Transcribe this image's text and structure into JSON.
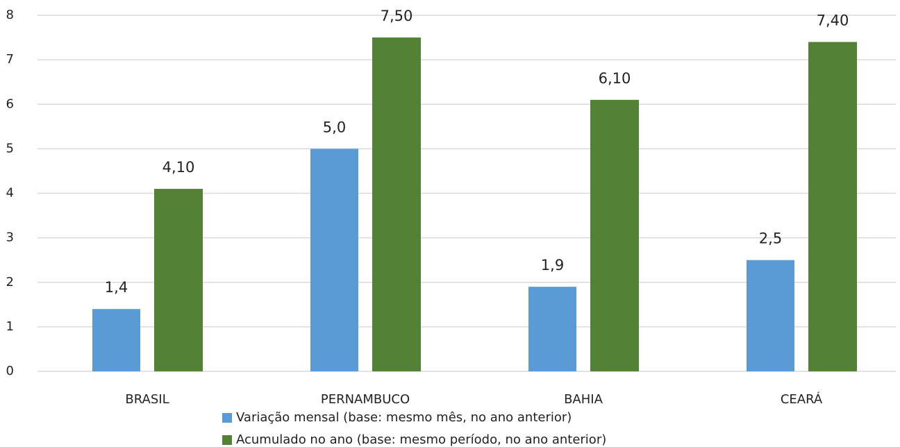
{
  "chart_data": {
    "type": "bar",
    "categories": [
      "BRASIL",
      "PERNAMBUCO",
      "BAHIA",
      "CEARÁ"
    ],
    "series": [
      {
        "name": "Variação mensal (base: mesmo mês, no ano anterior)",
        "color": "#5b9bd5",
        "values": [
          1.4,
          5.0,
          1.9,
          2.5
        ],
        "value_labels": [
          "1,4",
          "5,0",
          "1,9",
          "2,5"
        ]
      },
      {
        "name": "Acumulado no ano (base: mesmo período, no ano anterior)",
        "color": "#538135",
        "values": [
          4.1,
          7.5,
          6.1,
          7.4
        ],
        "value_labels": [
          "4,10",
          "7,50",
          "6,10",
          "7,40"
        ]
      }
    ],
    "ylim": [
      0,
      8
    ],
    "yticks": [
      0,
      1,
      2,
      3,
      4,
      5,
      6,
      7,
      8
    ],
    "grid": true,
    "legend": "bottom"
  }
}
